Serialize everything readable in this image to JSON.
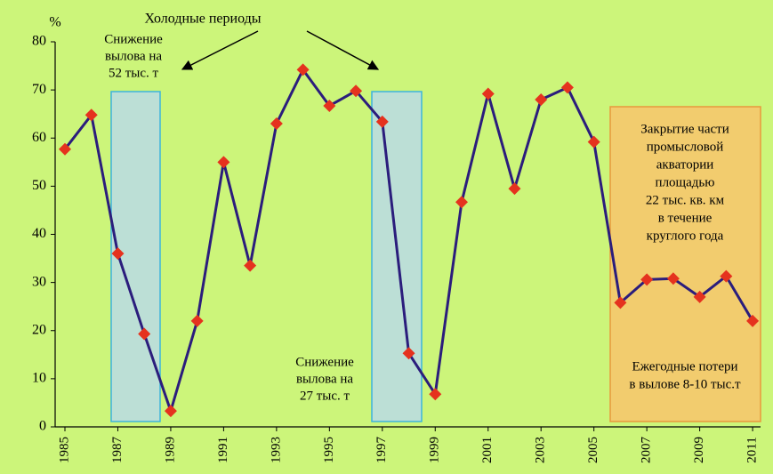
{
  "chart_data": {
    "type": "line",
    "y_label": "%",
    "x": [
      1985,
      1986,
      1987,
      1988,
      1989,
      1990,
      1991,
      1992,
      1993,
      1994,
      1995,
      1996,
      1997,
      1998,
      1999,
      2000,
      2001,
      2002,
      2003,
      2004,
      2005,
      2006,
      2007,
      2008,
      2009,
      2010,
      2011
    ],
    "values": [
      57.7,
      64.8,
      36,
      19.3,
      3.3,
      22,
      55,
      33.5,
      63,
      74.2,
      66.7,
      69.8,
      63.4,
      15.3,
      6.8,
      46.7,
      69.2,
      49.5,
      68,
      70.5,
      59.2,
      25.8,
      30.6,
      30.8,
      27,
      31.3,
      22
    ],
    "color": "#2b1d7c",
    "marker_color": "#e5321e",
    "xlim": [
      1984.63,
      2011.3
    ],
    "ylim": [
      0,
      80
    ],
    "xticks": [
      1985,
      1987,
      1989,
      1991,
      1993,
      1995,
      1997,
      1999,
      2001,
      2003,
      2005,
      2007,
      2009,
      2011
    ],
    "yticks": [
      0,
      10,
      20,
      30,
      40,
      50,
      60,
      70,
      80
    ],
    "annotations": {
      "cold_periods": "Холодные периоды",
      "decline_52": [
        "Снижение",
        "вылова на",
        "52 тыс. т"
      ],
      "decline_27": [
        "Снижение",
        "вылова на",
        "27 тыс. т"
      ],
      "closure": [
        "Закрытие части",
        "промысловой",
        "акватории",
        "площадью",
        "22 тыс. кв. км",
        "в течение",
        "круглого года"
      ],
      "losses": [
        "Ежегодные потери",
        "в вылове 8-10 тыс.т"
      ]
    }
  }
}
